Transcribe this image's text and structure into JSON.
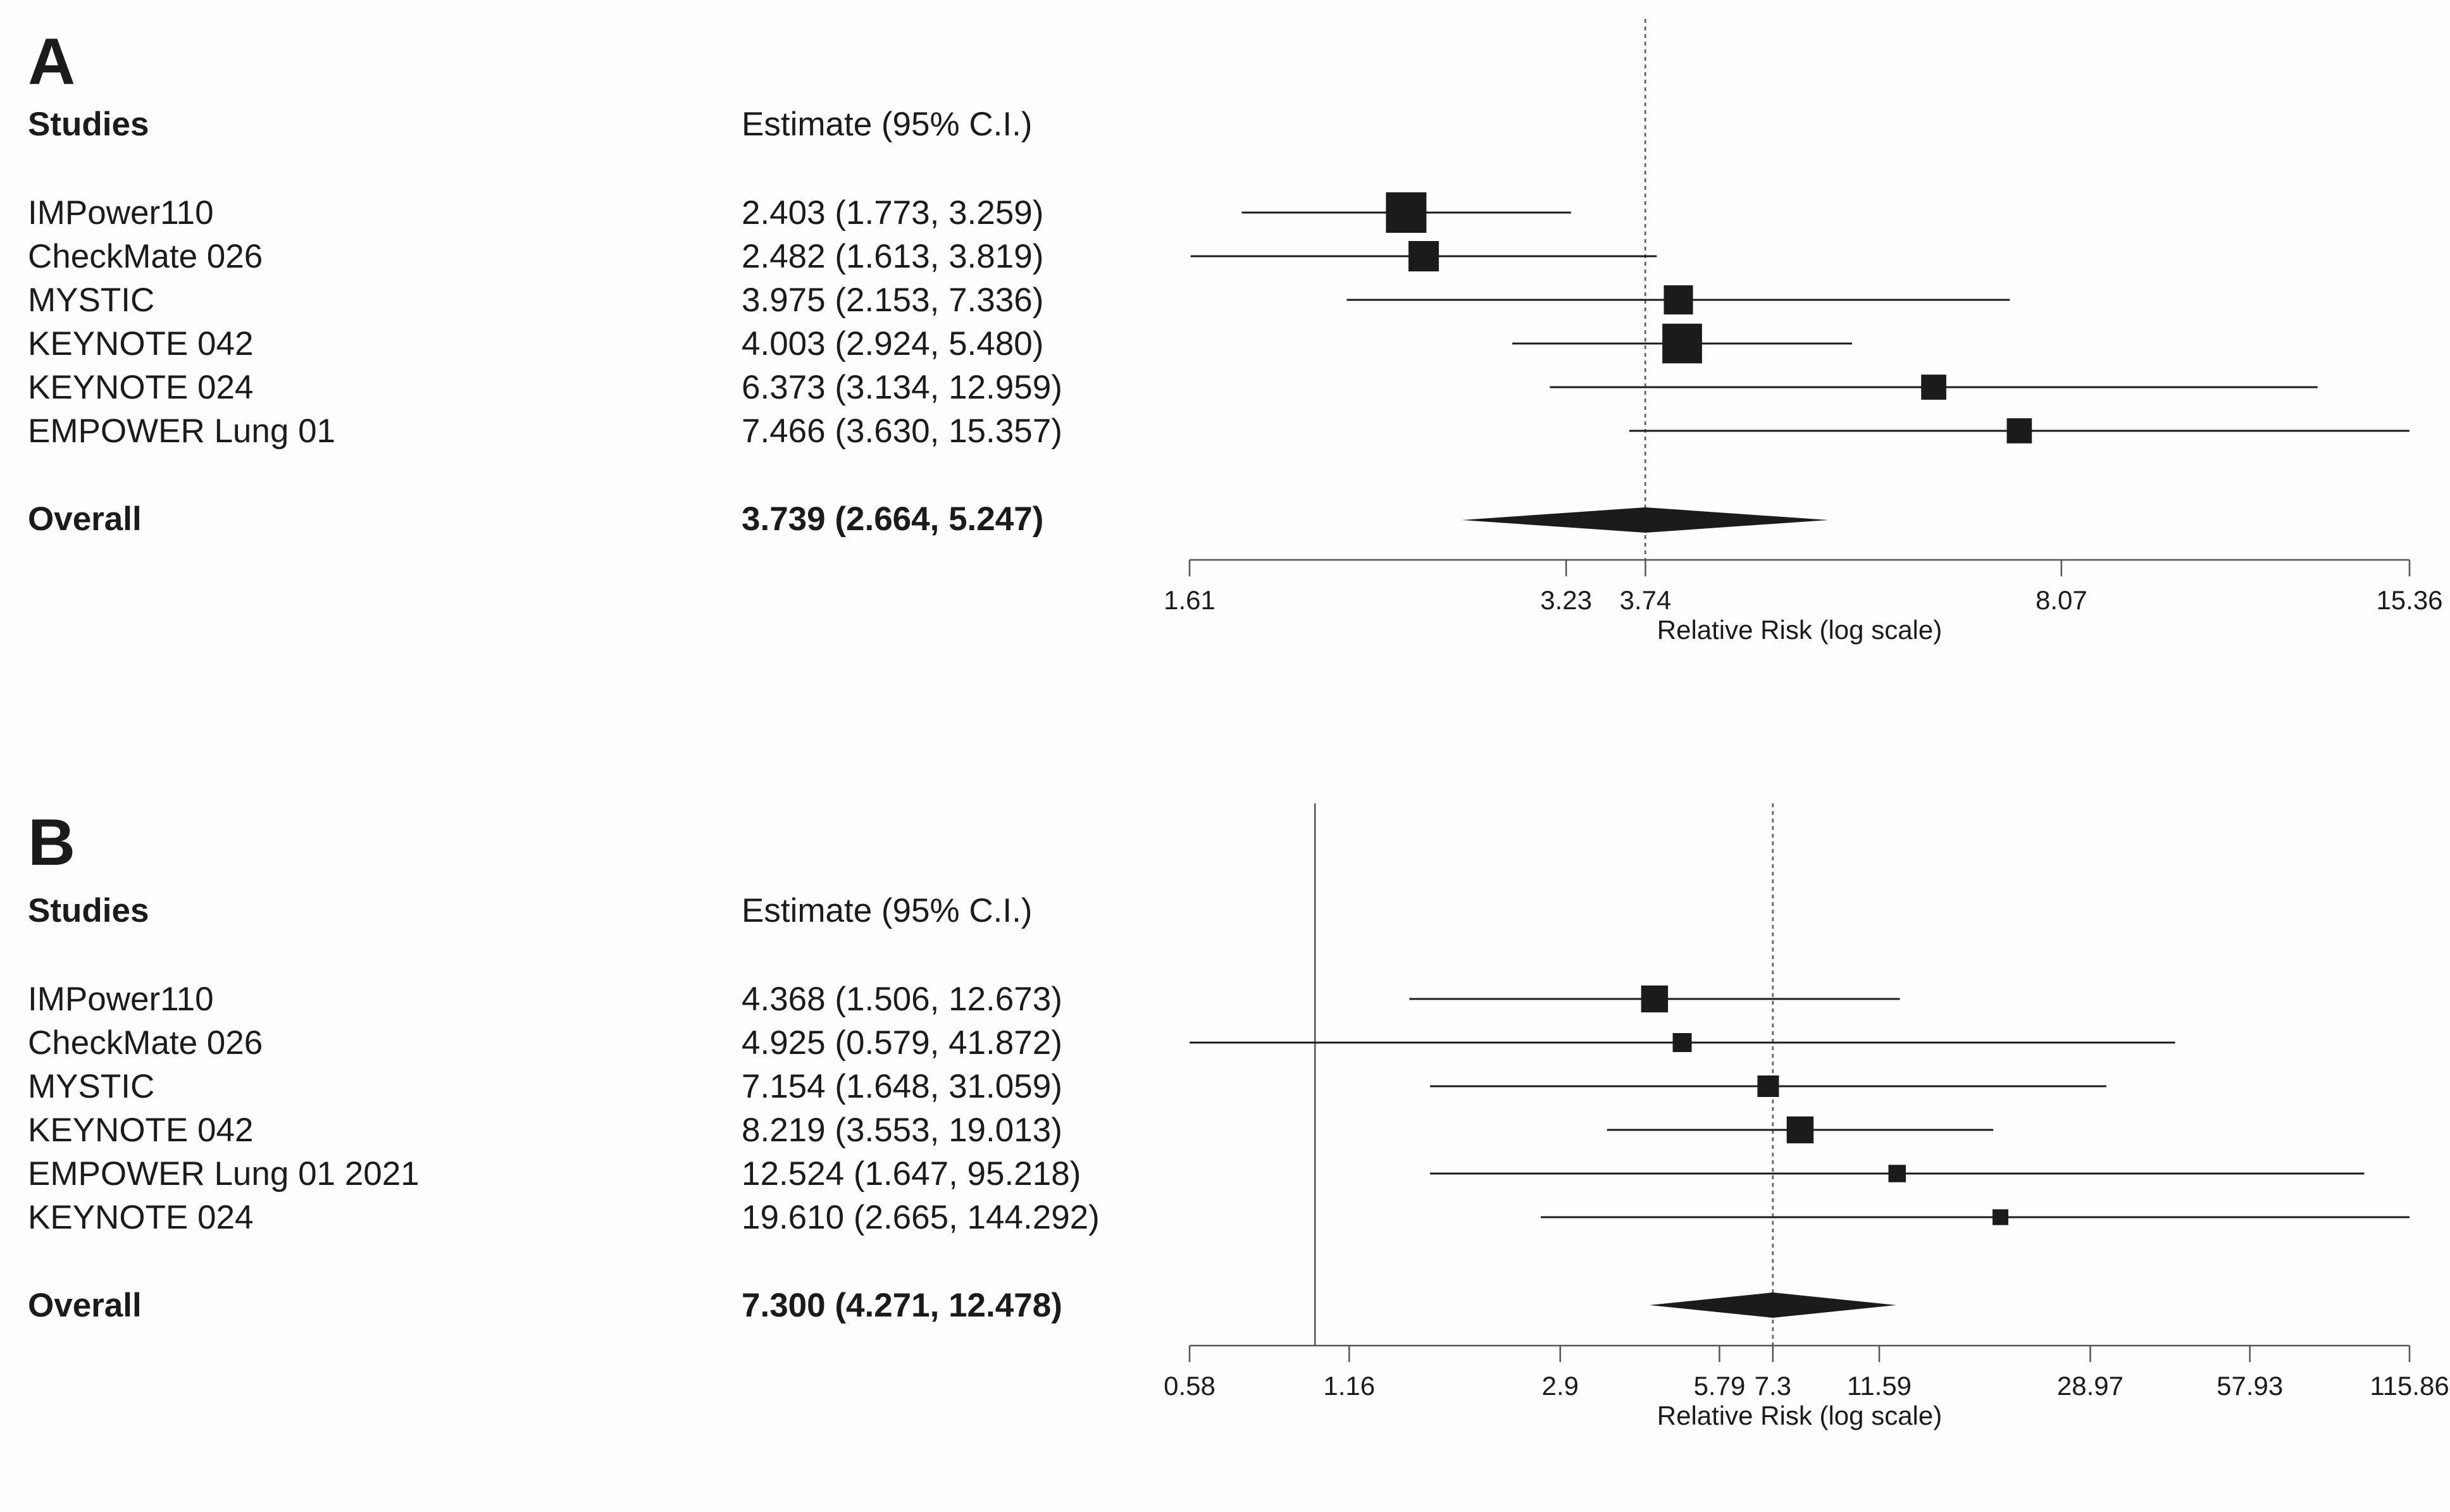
{
  "chart_data": [
    {
      "type": "forest",
      "panel": "A",
      "studies_header": "Studies",
      "estimate_header": "Estimate (95% C.I.)",
      "xlabel": "Relative Risk (log scale)",
      "xscale": "log",
      "xlim": [
        1.61,
        15.36
      ],
      "xticks": [
        "1.61",
        "3.23",
        "3.74",
        "8.07",
        "15.36"
      ],
      "reference_line": {
        "value": 3.739,
        "style": "dotted"
      },
      "null_line": null,
      "studies": [
        {
          "name": "IMPower110",
          "estimate": 2.403,
          "lower": 1.773,
          "upper": 3.259,
          "text": "2.403 (1.773, 3.259)",
          "weight": 1.0
        },
        {
          "name": "CheckMate 026",
          "estimate": 2.482,
          "lower": 1.613,
          "upper": 3.819,
          "text": "2.482 (1.613, 3.819)",
          "weight": 0.75
        },
        {
          "name": "MYSTIC",
          "estimate": 3.975,
          "lower": 2.153,
          "upper": 7.336,
          "text": "3.975 (2.153, 7.336)",
          "weight": 0.72
        },
        {
          "name": "KEYNOTE 042",
          "estimate": 4.003,
          "lower": 2.924,
          "upper": 5.48,
          "text": "4.003 (2.924, 5.480)",
          "weight": 0.98
        },
        {
          "name": "KEYNOTE 024",
          "estimate": 6.373,
          "lower": 3.134,
          "upper": 12.959,
          "text": "6.373 (3.134, 12.959)",
          "weight": 0.62
        },
        {
          "name": "EMPOWER Lung 01",
          "estimate": 7.466,
          "lower": 3.63,
          "upper": 15.357,
          "text": "7.466 (3.630, 15.357)",
          "weight": 0.62
        }
      ],
      "overall": {
        "name": "Overall",
        "estimate": 3.739,
        "lower": 2.664,
        "upper": 5.247,
        "text": "3.739 (2.664, 5.247)"
      }
    },
    {
      "type": "forest",
      "panel": "B",
      "studies_header": "Studies",
      "estimate_header": "Estimate (95% C.I.)",
      "xlabel": "Relative Risk (log scale)",
      "xscale": "log",
      "xlim": [
        0.58,
        115.86
      ],
      "xticks": [
        "0.58",
        "1.16",
        "2.9",
        "5.79",
        "7.3",
        "11.59",
        "28.97",
        "57.93",
        "115.86"
      ],
      "reference_line": {
        "value": 7.3,
        "style": "dotted"
      },
      "null_line": {
        "value": 1.0,
        "style": "solid"
      },
      "studies": [
        {
          "name": "IMPower110",
          "estimate": 4.368,
          "lower": 1.506,
          "upper": 12.673,
          "text": "4.368 (1.506, 12.673)",
          "weight": 0.85
        },
        {
          "name": "CheckMate 026",
          "estimate": 4.925,
          "lower": 0.579,
          "upper": 41.872,
          "text": "4.925 (0.579, 41.872)",
          "weight": 0.6
        },
        {
          "name": "MYSTIC",
          "estimate": 7.154,
          "lower": 1.648,
          "upper": 31.059,
          "text": "7.154 (1.648, 31.059)",
          "weight": 0.68
        },
        {
          "name": "KEYNOTE 042",
          "estimate": 8.219,
          "lower": 3.553,
          "upper": 19.013,
          "text": "8.219 (3.553, 19.013)",
          "weight": 0.85
        },
        {
          "name": "EMPOWER Lung 01 2021",
          "estimate": 12.524,
          "lower": 1.647,
          "upper": 95.218,
          "text": "12.524 (1.647, 95.218)",
          "weight": 0.55
        },
        {
          "name": "KEYNOTE 024",
          "estimate": 19.61,
          "lower": 2.665,
          "upper": 144.292,
          "text": "19.610 (2.665, 144.292)",
          "weight": 0.5
        }
      ],
      "overall": {
        "name": "Overall",
        "estimate": 7.3,
        "lower": 4.271,
        "upper": 12.478,
        "text": "7.300 (4.271, 12.478)"
      }
    }
  ],
  "colors": {
    "ink": "#1b1b1b",
    "ref_line": "#555555",
    "background": "#fdfdfd"
  }
}
